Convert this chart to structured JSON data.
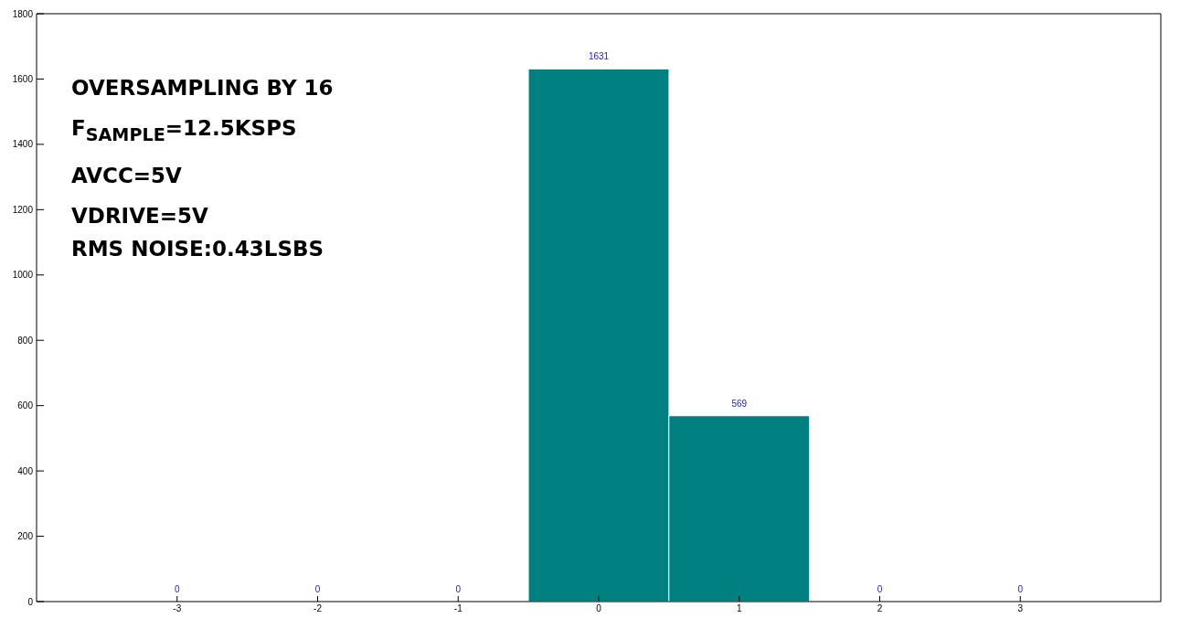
{
  "chart_data": {
    "type": "histogram",
    "bins": [
      -3.5,
      -2.5,
      -1.5,
      -0.5,
      0.5,
      1.5,
      2.5,
      3.5
    ],
    "values": [
      0,
      0,
      0,
      1631,
      569,
      0,
      0
    ],
    "color": "#008080",
    "data_labels": true,
    "xlim": [
      -4,
      4
    ],
    "xticks": [
      -3,
      -2,
      -1,
      0,
      1,
      2,
      3
    ],
    "ylim": [
      0,
      1800
    ],
    "yticks": [
      0,
      200,
      400,
      600,
      800,
      1000,
      1200,
      1400,
      1600,
      1800
    ],
    "grid": false,
    "legend": false,
    "annotations": [
      "OVERSAMPLING BY 16",
      "F$_{SAMPLE}$=12.5KSPS",
      "AVCC=5V",
      "VDRIVE=5V",
      "RMS NOISE:0.43LSBS"
    ]
  }
}
